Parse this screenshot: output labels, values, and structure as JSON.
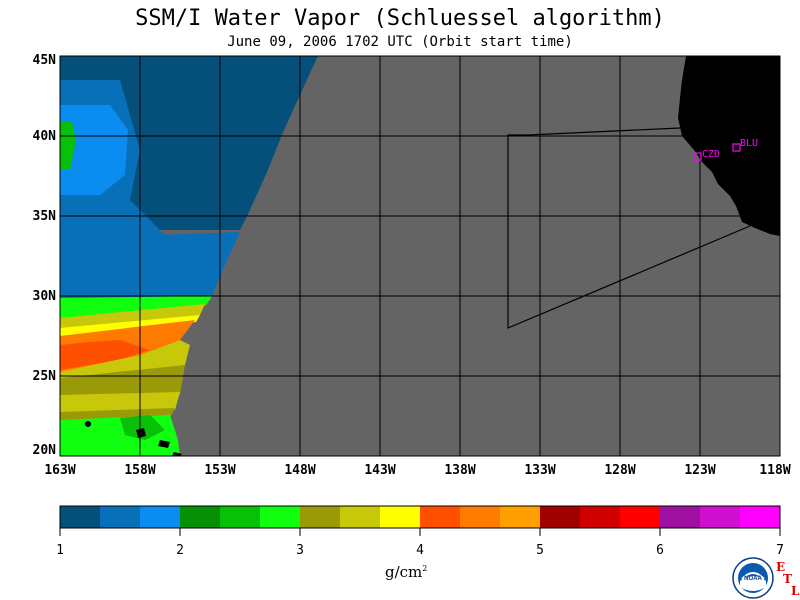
{
  "title": "SSM/I Water Vapor (Schluessel algorithm)",
  "subtitle": "June 09, 2006  1702 UTC  (Orbit start time)",
  "lat_labels": [
    "45N",
    "40N",
    "35N",
    "30N",
    "25N",
    "20N"
  ],
  "lon_labels": [
    "163W",
    "158W",
    "153W",
    "148W",
    "143W",
    "138W",
    "133W",
    "128W",
    "123W",
    "118W"
  ],
  "stations": [
    {
      "label": "CZD",
      "lon": -123.0,
      "lat": 38.6
    },
    {
      "label": "BLU",
      "lon": -120.8,
      "lat": 39.3
    }
  ],
  "colorbar": {
    "unit": "g/cm",
    "unit_sup": "2",
    "ticks": [
      "1",
      "2",
      "3",
      "4",
      "5",
      "6",
      "7"
    ],
    "colors": [
      "#05507a",
      "#0870b8",
      "#0a8cf0",
      "#059005",
      "#08c008",
      "#10ff10",
      "#9a9a08",
      "#c8c80a",
      "#ffff00",
      "#ff5000",
      "#ff7a00",
      "#ffa000",
      "#a00000",
      "#d00000",
      "#ff0000",
      "#a010a0",
      "#d010d0",
      "#ff00ff"
    ]
  },
  "map": {
    "bounds": {
      "lon_min": -163,
      "lon_max": -118,
      "lat_min": 20,
      "lat_max": 45
    },
    "no_data_color": "#646464",
    "land_color": "#000000"
  },
  "logo": {
    "text": "NOAA",
    "etl_letters": [
      "E",
      "T",
      "L"
    ]
  }
}
